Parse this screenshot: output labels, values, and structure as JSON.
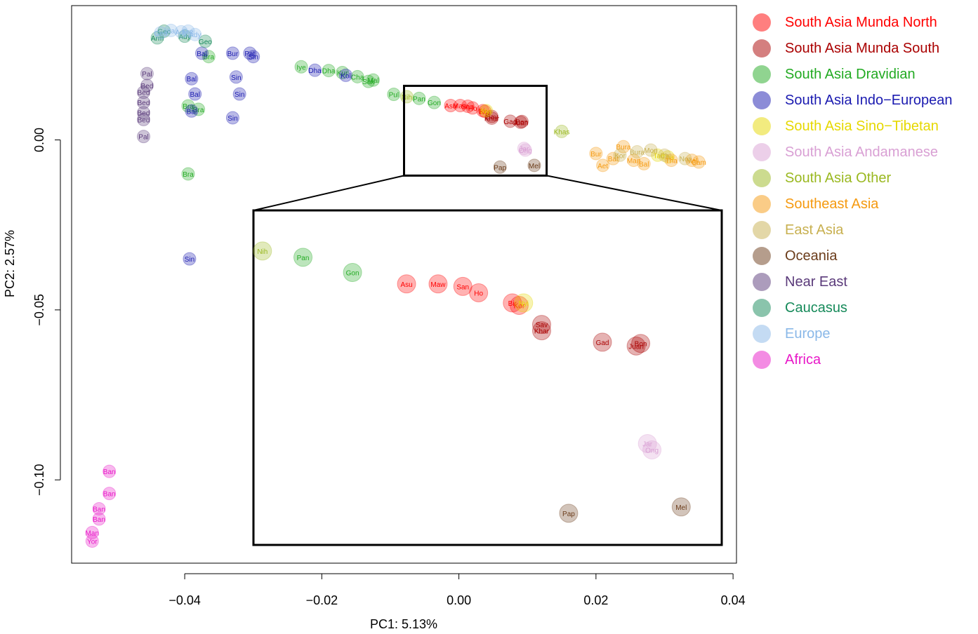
{
  "chart_data": {
    "type": "scatter",
    "xlabel": "PC1: 5.13%",
    "ylabel": "PC2: 2.57%",
    "xlim": [
      -0.0565,
      0.0405
    ],
    "ylim": [
      -0.1245,
      0.0395
    ],
    "x_ticks": [
      -0.04,
      -0.02,
      0.0,
      0.02,
      0.04
    ],
    "x_tick_labels": [
      "−0.04",
      "−0.02",
      "0.00",
      "0.02",
      "0.04"
    ],
    "y_ticks": [
      0.0,
      -0.05,
      -0.1
    ],
    "y_tick_labels": [
      "0.00",
      "−0.05",
      "−0.10"
    ],
    "grid": false,
    "legend_position": "right-outside",
    "series": [
      {
        "name": "South Asia Munda North",
        "color": "#ff0000",
        "points": [
          [
            -0.0012,
            0.0101,
            "Asu"
          ],
          [
            0.0002,
            0.0101,
            "Maw"
          ],
          [
            0.0013,
            0.0099,
            "San"
          ],
          [
            0.0035,
            0.0086,
            "Bir"
          ],
          [
            0.0038,
            0.0084,
            "Kor"
          ],
          [
            0.002,
            0.0094,
            "Ho"
          ]
        ]
      },
      {
        "name": "South Asia Munda South",
        "color": "#aa0000",
        "points": [
          [
            0.0048,
            0.0069,
            "Sav"
          ],
          [
            0.0048,
            0.0064,
            "Khar"
          ],
          [
            0.0075,
            0.0055,
            "Gad"
          ],
          [
            0.0092,
            0.0054,
            "Bon"
          ],
          [
            0.009,
            0.0052,
            "Juan"
          ]
        ]
      },
      {
        "name": "South Asia Dravidian",
        "color": "#22aa22",
        "points": [
          [
            -0.0058,
            0.0122,
            "Pan"
          ],
          [
            -0.0036,
            0.011,
            "Gon"
          ],
          [
            -0.0095,
            0.0134,
            "Pul"
          ],
          [
            -0.023,
            0.0215,
            "Iye"
          ],
          [
            -0.019,
            0.0204,
            "Dha"
          ],
          [
            -0.017,
            0.0198,
            "Kur"
          ],
          [
            -0.0148,
            0.0186,
            "Cha"
          ],
          [
            -0.0125,
            0.0176,
            "Mal"
          ],
          [
            -0.0132,
            0.0172,
            "Sak"
          ],
          [
            -0.0365,
            0.0245,
            "Bra"
          ],
          [
            -0.038,
            0.009,
            "Bra"
          ],
          [
            -0.0395,
            0.01,
            "Bra"
          ],
          [
            -0.0395,
            -0.01,
            "Bra"
          ]
        ]
      },
      {
        "name": "South Asia Indo−European",
        "color": "#1a1ab0",
        "points": [
          [
            -0.0375,
            0.0255,
            "Bal"
          ],
          [
            -0.0305,
            0.0255,
            "Pat"
          ],
          [
            -0.03,
            0.0245,
            "Sin"
          ],
          [
            -0.033,
            0.0255,
            "Bur"
          ],
          [
            -0.021,
            0.0205,
            "Dha"
          ],
          [
            -0.0165,
            0.019,
            "Kol"
          ],
          [
            -0.039,
            0.018,
            "Bal"
          ],
          [
            -0.0385,
            0.0135,
            "Bal"
          ],
          [
            -0.039,
            0.0085,
            "Bal"
          ],
          [
            -0.033,
            0.0065,
            "Sin"
          ],
          [
            -0.032,
            0.0135,
            "Sin"
          ],
          [
            -0.0325,
            0.0185,
            "Sin"
          ],
          [
            -0.0393,
            -0.035,
            "Sin"
          ]
        ]
      },
      {
        "name": "South Asia Sino−Tibetan",
        "color": "#e6d800",
        "points": [
          [
            0.004,
            0.0086,
            "Nyi"
          ],
          [
            0.0305,
            -0.005,
            "Tha"
          ],
          [
            0.029,
            -0.0045,
            "Tai"
          ]
        ]
      },
      {
        "name": "South Asia Andamanese",
        "color": "#d9a0d4",
        "points": [
          [
            0.0095,
            -0.0025,
            "Jar"
          ],
          [
            0.0097,
            -0.003,
            "Ong"
          ]
        ]
      },
      {
        "name": "South Asia Other",
        "color": "#9ab820",
        "points": [
          [
            0.015,
            0.0025,
            "Khas"
          ],
          [
            -0.0076,
            0.0127,
            "Nih"
          ]
        ]
      },
      {
        "name": "Southeast Asia",
        "color": "#f59a10",
        "points": [
          [
            0.024,
            -0.002,
            "Bura"
          ],
          [
            0.0225,
            -0.0055,
            "Bat"
          ],
          [
            0.0255,
            -0.006,
            "Man"
          ],
          [
            0.021,
            -0.0075,
            "Aet"
          ],
          [
            0.027,
            -0.007,
            "Bal"
          ],
          [
            0.031,
            -0.006,
            "Tha"
          ],
          [
            0.035,
            -0.0065,
            "Cam"
          ],
          [
            0.034,
            -0.006,
            "Mal"
          ],
          [
            0.02,
            -0.004,
            "Bur"
          ]
        ]
      },
      {
        "name": "East Asia",
        "color": "#c8b050",
        "points": [
          [
            0.028,
            -0.003,
            "Mon"
          ],
          [
            0.033,
            -0.0055,
            "Nor"
          ],
          [
            0.03,
            -0.0045,
            "Ch"
          ],
          [
            0.026,
            -0.0035,
            "Bura"
          ],
          [
            0.0235,
            -0.0045,
            "Kor"
          ]
        ]
      },
      {
        "name": "Oceania",
        "color": "#6b3c1a",
        "points": [
          [
            0.006,
            -0.008,
            "Pap"
          ],
          [
            0.011,
            -0.0075,
            "Mel"
          ]
        ]
      },
      {
        "name": "Near East",
        "color": "#5a3a7a",
        "points": [
          [
            -0.0455,
            0.0195,
            "Pal"
          ],
          [
            -0.0455,
            0.016,
            "Bed"
          ],
          [
            -0.046,
            0.014,
            "Bed"
          ],
          [
            -0.046,
            0.011,
            "Bed"
          ],
          [
            -0.046,
            0.008,
            "Bed"
          ],
          [
            -0.046,
            0.006,
            "Bed"
          ],
          [
            -0.046,
            0.001,
            "Pal"
          ]
        ]
      },
      {
        "name": "Caucasus",
        "color": "#168a5a",
        "points": [
          [
            -0.044,
            0.03,
            "Arm"
          ],
          [
            -0.04,
            0.0305,
            "Ady"
          ],
          [
            -0.037,
            0.029,
            "Geo"
          ],
          [
            -0.043,
            0.032,
            "Geo"
          ]
        ]
      },
      {
        "name": "Europe",
        "color": "#8ab8e8",
        "points": [
          [
            -0.0435,
            0.0315,
            "Geo"
          ],
          [
            -0.0405,
            0.0318,
            "Ady"
          ],
          [
            -0.0385,
            0.031,
            "Ady"
          ],
          [
            -0.042,
            0.0322,
            "Ita"
          ],
          [
            -0.0395,
            0.032,
            "Fre"
          ]
        ]
      },
      {
        "name": "Africa",
        "color": "#e818c8",
        "points": [
          [
            -0.0525,
            -0.1115,
            "Ban"
          ],
          [
            -0.0535,
            -0.1155,
            "Man"
          ],
          [
            -0.0535,
            -0.118,
            "Yor"
          ],
          [
            -0.0525,
            -0.1085,
            "Ban"
          ],
          [
            -0.051,
            -0.0975,
            "Ban"
          ],
          [
            -0.051,
            -0.104,
            "Ban"
          ]
        ]
      }
    ]
  },
  "inset": {
    "src_xlim": [
      -0.008,
      0.0128
    ],
    "src_ylim": [
      -0.0105,
      0.0159
    ]
  }
}
